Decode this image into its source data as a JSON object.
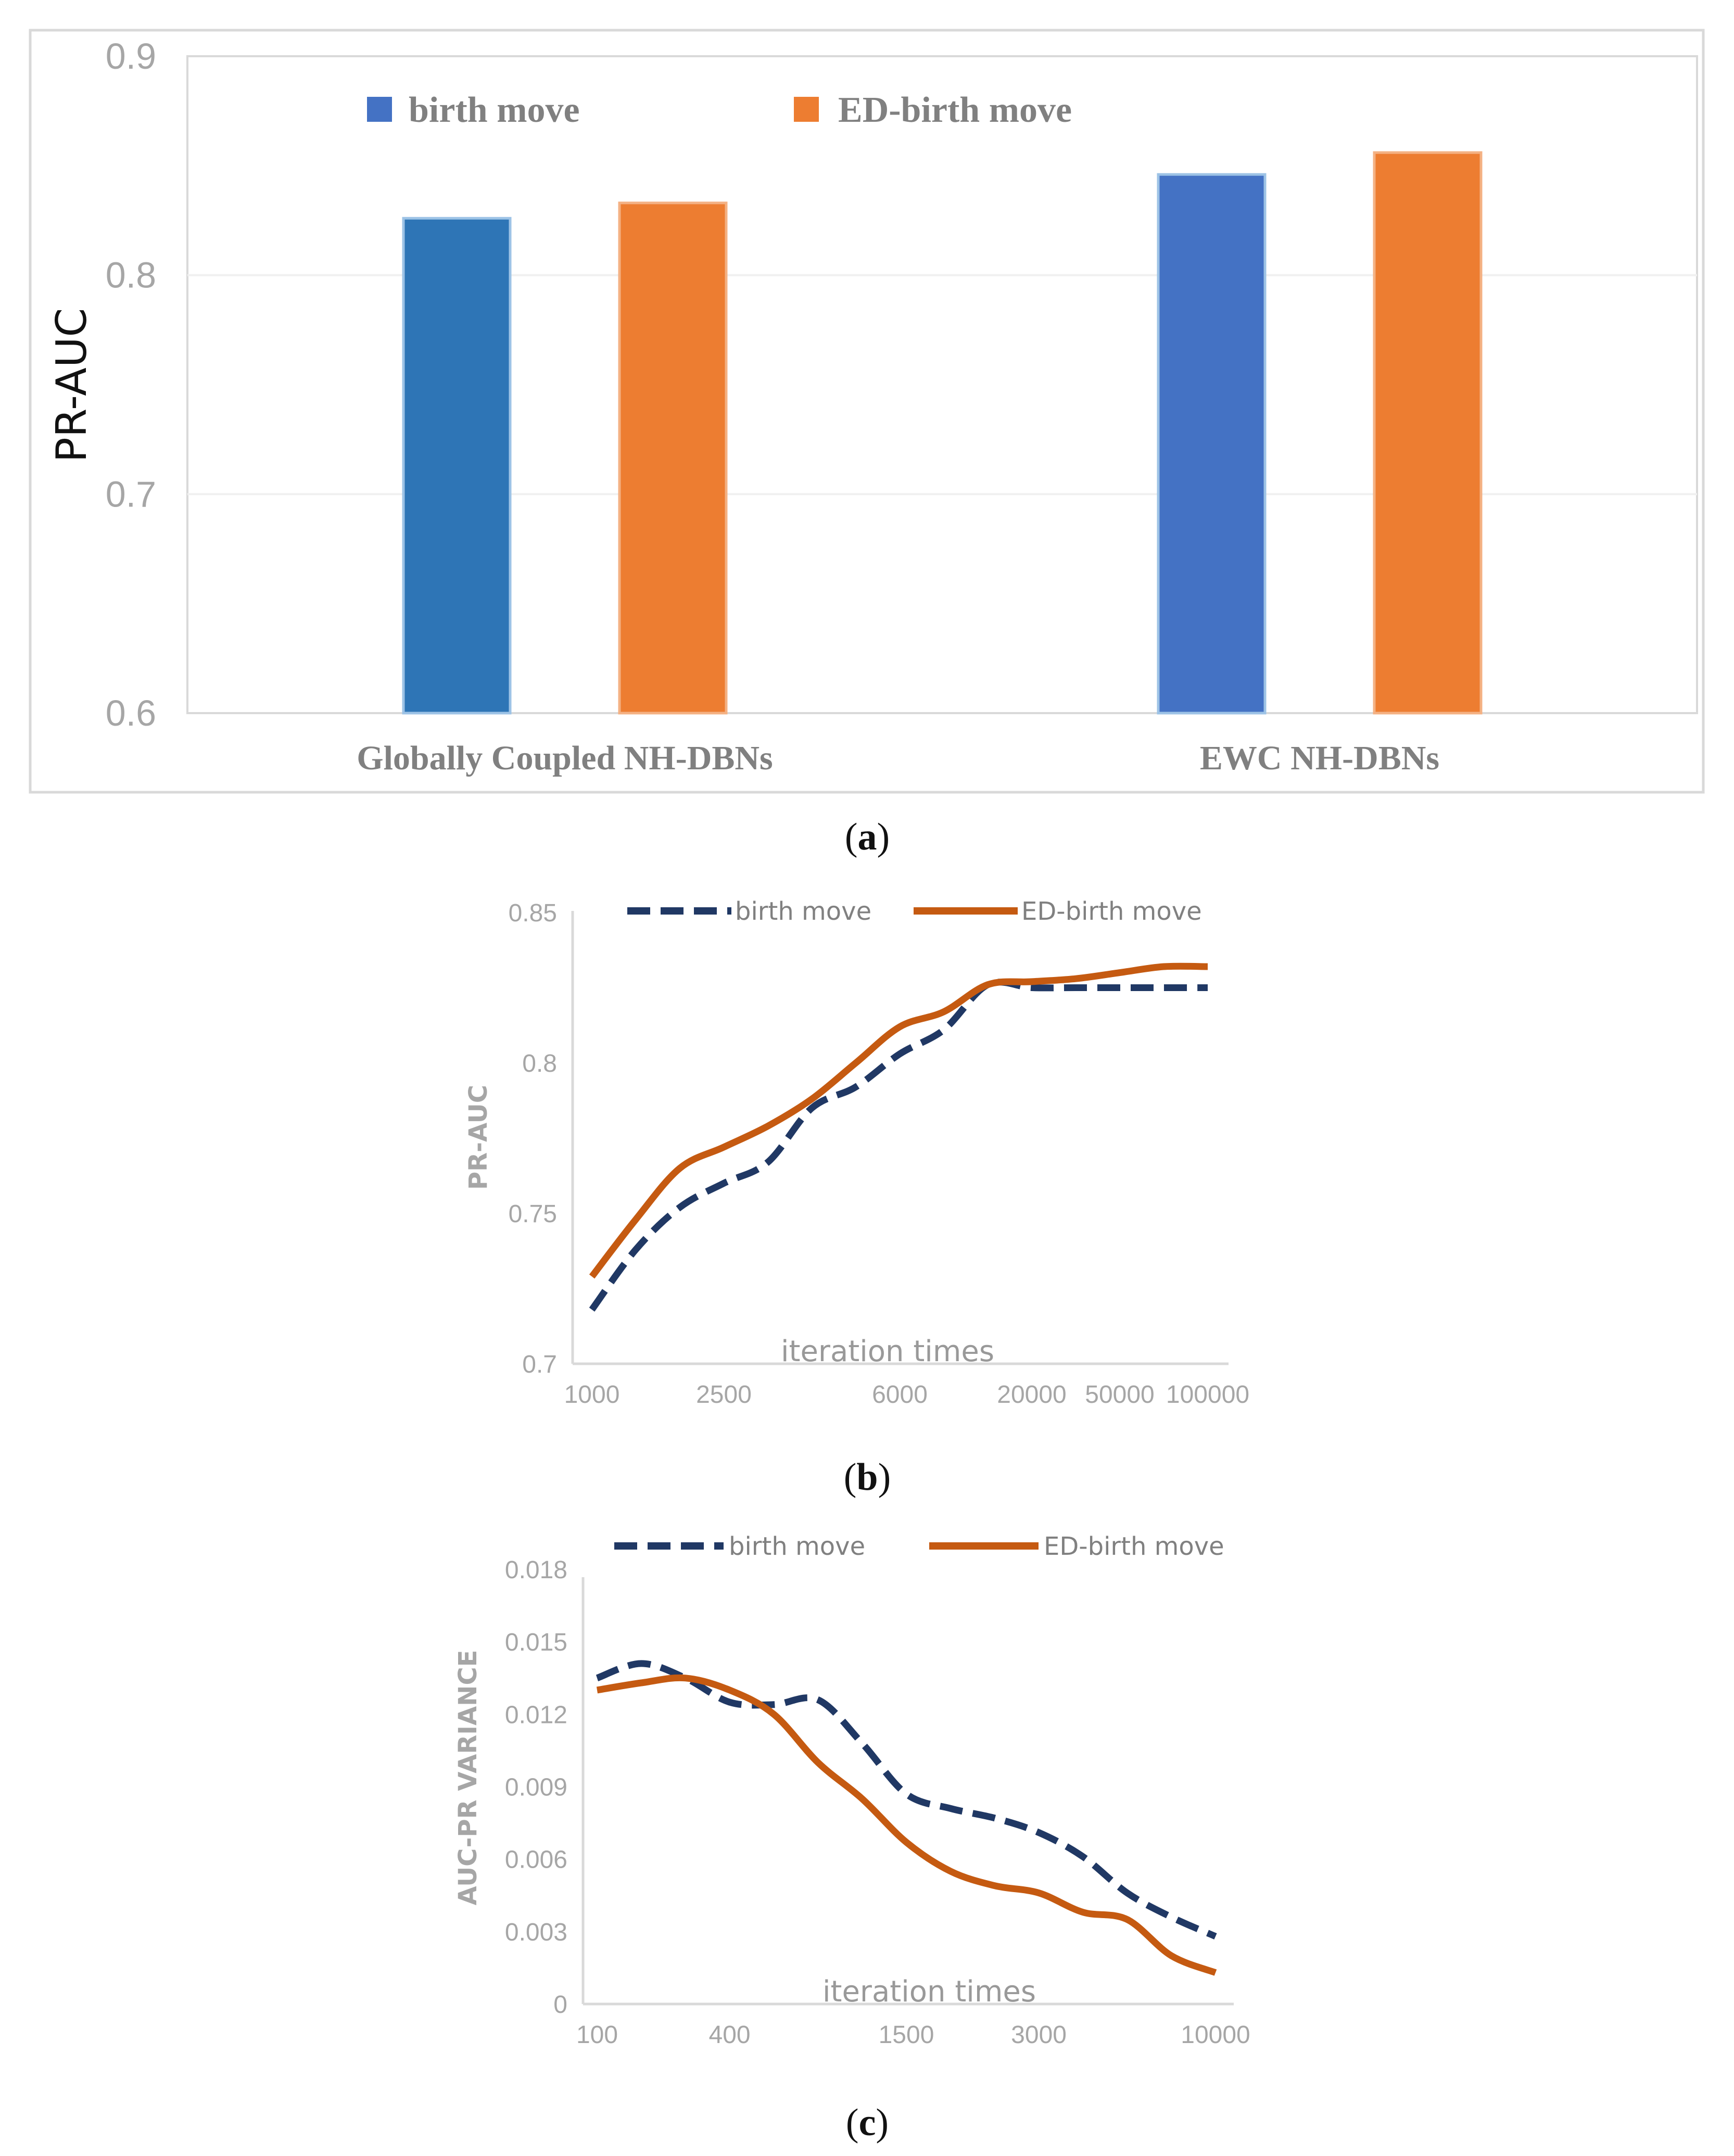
{
  "colors": {
    "blue_a": "#2e75b6",
    "blue_b": "#4472c4",
    "orange": "#ed7d31",
    "navy": "#203864",
    "rust": "#c55a11",
    "grid": "#f0f0f0",
    "tick_text": "#a6a6a6",
    "frame": "#d9d9d9"
  },
  "chart_data": [
    {
      "type": "bar",
      "caption": "(a)",
      "caption_bold": "a",
      "ylabel": "PR-AUC",
      "ylim": [
        0.6,
        0.9
      ],
      "yticks": [
        "0.6",
        "0.7",
        "0.8",
        "0.9"
      ],
      "categories": [
        "Globally Coupled NH-DBNs",
        "EWC NH-DBNs"
      ],
      "series": [
        {
          "name": "birth move",
          "values": [
            0.826,
            0.846
          ]
        },
        {
          "name": "ED-birth move",
          "values": [
            0.833,
            0.856
          ]
        }
      ],
      "legend": "top-left",
      "grid": true
    },
    {
      "type": "line",
      "caption": "(b)",
      "caption_bold": "b",
      "ylabel": "PR-AUC",
      "xlabel": "iteration times",
      "ylim": [
        0.7,
        0.85
      ],
      "yticks": [
        "0.7",
        "0.75",
        "0.8",
        "0.85"
      ],
      "xticks": [
        "1000",
        "2500",
        "6000",
        "20000",
        "50000",
        "100000"
      ],
      "x": [
        1000,
        1500,
        2000,
        2500,
        3000,
        4000,
        5000,
        6000,
        8000,
        12000,
        20000,
        30000,
        50000,
        75000,
        100000
      ],
      "series": [
        {
          "name": "birth move",
          "style": "dashed",
          "values": [
            0.718,
            0.738,
            0.752,
            0.76,
            0.767,
            0.785,
            0.792,
            0.803,
            0.811,
            0.826,
            0.825,
            0.825,
            0.825,
            0.825,
            0.825
          ]
        },
        {
          "name": "ED-birth move",
          "style": "solid",
          "values": [
            0.729,
            0.748,
            0.765,
            0.772,
            0.779,
            0.788,
            0.8,
            0.812,
            0.817,
            0.826,
            0.827,
            0.828,
            0.83,
            0.832,
            0.832
          ]
        }
      ],
      "legend": "top"
    },
    {
      "type": "line",
      "caption": "(c)",
      "caption_bold": "c",
      "ylabel": "AUC-PR VARIANCE",
      "xlabel": "iteration times",
      "ylim": [
        0,
        0.018
      ],
      "yticks": [
        "0",
        "0.003",
        "0.006",
        "0.009",
        "0.012",
        "0.015",
        "0.018"
      ],
      "xticks": [
        "100",
        "400",
        "1500",
        "3000",
        "10000"
      ],
      "x": [
        100,
        200,
        300,
        400,
        500,
        700,
        1000,
        1500,
        2000,
        2500,
        3000,
        4000,
        5000,
        7000,
        10000
      ],
      "series": [
        {
          "name": "birth move",
          "style": "dashed",
          "values": [
            0.0135,
            0.0141,
            0.0135,
            0.0125,
            0.0124,
            0.0126,
            0.0108,
            0.0087,
            0.0081,
            0.0077,
            0.0071,
            0.0061,
            0.0046,
            0.0036,
            0.0028
          ]
        },
        {
          "name": "ED-birth move",
          "style": "solid",
          "values": [
            0.013,
            0.0133,
            0.0135,
            0.013,
            0.012,
            0.01,
            0.0085,
            0.0067,
            0.0055,
            0.0049,
            0.0046,
            0.0038,
            0.0035,
            0.002,
            0.0013
          ]
        }
      ],
      "legend": "top"
    }
  ]
}
